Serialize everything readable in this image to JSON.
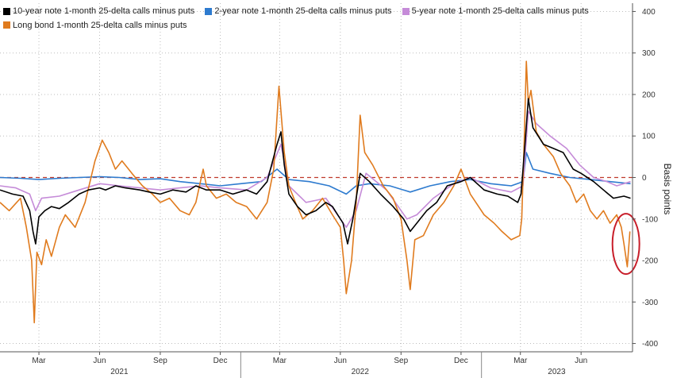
{
  "chart_data": {
    "type": "line",
    "title": "",
    "xlabel": "",
    "ylabel": "Basis points",
    "ylim": [
      -420,
      420
    ],
    "yticks": [
      400,
      300,
      200,
      100,
      0,
      -100,
      -200,
      -300,
      -400
    ],
    "x_range": [
      "2021-01-01",
      "2023-08-18"
    ],
    "month_ticks": [
      {
        "label": "Mar",
        "date": "2021-03-01"
      },
      {
        "label": "Jun",
        "date": "2021-06-01"
      },
      {
        "label": "Sep",
        "date": "2021-09-01"
      },
      {
        "label": "Dec",
        "date": "2021-12-01"
      },
      {
        "label": "Mar",
        "date": "2022-03-01"
      },
      {
        "label": "Jun",
        "date": "2022-06-01"
      },
      {
        "label": "Sep",
        "date": "2022-09-01"
      },
      {
        "label": "Dec",
        "date": "2022-12-01"
      },
      {
        "label": "Mar",
        "date": "2023-03-01"
      },
      {
        "label": "Jun",
        "date": "2023-06-01"
      }
    ],
    "year_labels": [
      {
        "label": "2021",
        "date": "2021-07-01"
      },
      {
        "label": "2022",
        "date": "2022-07-01"
      },
      {
        "label": "2023",
        "date": "2023-04-25"
      }
    ],
    "year_separators": [
      "2022-01-01",
      "2023-01-01"
    ],
    "zero_line": {
      "value": 0,
      "color": "#c0392b",
      "style": "dashed"
    },
    "grid": true,
    "legend_position": "top-left",
    "annotation": {
      "type": "circle",
      "date": "2023-08-08",
      "value": -160,
      "color": "#c81e2a"
    },
    "series": [
      {
        "name": "10-year note 1-month 25-delta calls minus puts",
        "color": "#000000",
        "points": [
          [
            "2021-01-01",
            -30
          ],
          [
            "2021-01-20",
            -40
          ],
          [
            "2021-02-05",
            -45
          ],
          [
            "2021-02-15",
            -80
          ],
          [
            "2021-02-20",
            -130
          ],
          [
            "2021-02-24",
            -160
          ],
          [
            "2021-03-01",
            -95
          ],
          [
            "2021-03-10",
            -80
          ],
          [
            "2021-03-20",
            -70
          ],
          [
            "2021-04-01",
            -75
          ],
          [
            "2021-04-15",
            -60
          ],
          [
            "2021-05-01",
            -40
          ],
          [
            "2021-05-15",
            -30
          ],
          [
            "2021-06-01",
            -25
          ],
          [
            "2021-06-10",
            -30
          ],
          [
            "2021-06-25",
            -20
          ],
          [
            "2021-07-10",
            -25
          ],
          [
            "2021-08-01",
            -30
          ],
          [
            "2021-08-15",
            -35
          ],
          [
            "2021-09-01",
            -40
          ],
          [
            "2021-09-20",
            -30
          ],
          [
            "2021-10-10",
            -35
          ],
          [
            "2021-10-25",
            -20
          ],
          [
            "2021-11-10",
            -30
          ],
          [
            "2021-12-01",
            -30
          ],
          [
            "2021-12-20",
            -40
          ],
          [
            "2022-01-10",
            -30
          ],
          [
            "2022-01-25",
            -40
          ],
          [
            "2022-02-10",
            -10
          ],
          [
            "2022-02-25",
            80
          ],
          [
            "2022-03-03",
            110
          ],
          [
            "2022-03-08",
            30
          ],
          [
            "2022-03-15",
            -40
          ],
          [
            "2022-03-28",
            -70
          ],
          [
            "2022-04-10",
            -90
          ],
          [
            "2022-04-25",
            -80
          ],
          [
            "2022-05-10",
            -60
          ],
          [
            "2022-05-20",
            -70
          ],
          [
            "2022-06-05",
            -110
          ],
          [
            "2022-06-12",
            -160
          ],
          [
            "2022-06-20",
            -100
          ],
          [
            "2022-07-01",
            10
          ],
          [
            "2022-07-15",
            -10
          ],
          [
            "2022-08-01",
            -40
          ],
          [
            "2022-08-20",
            -70
          ],
          [
            "2022-09-05",
            -100
          ],
          [
            "2022-09-15",
            -130
          ],
          [
            "2022-09-25",
            -110
          ],
          [
            "2022-10-10",
            -80
          ],
          [
            "2022-10-25",
            -60
          ],
          [
            "2022-11-10",
            -20
          ],
          [
            "2022-12-01",
            -10
          ],
          [
            "2022-12-15",
            0
          ],
          [
            "2023-01-05",
            -30
          ],
          [
            "2023-01-25",
            -40
          ],
          [
            "2023-02-10",
            -45
          ],
          [
            "2023-02-25",
            -60
          ],
          [
            "2023-03-02",
            -40
          ],
          [
            "2023-03-08",
            80
          ],
          [
            "2023-03-13",
            190
          ],
          [
            "2023-03-20",
            120
          ],
          [
            "2023-04-05",
            80
          ],
          [
            "2023-04-20",
            70
          ],
          [
            "2023-05-05",
            60
          ],
          [
            "2023-05-20",
            20
          ],
          [
            "2023-06-01",
            10
          ],
          [
            "2023-06-20",
            -10
          ],
          [
            "2023-07-05",
            -30
          ],
          [
            "2023-07-20",
            -50
          ],
          [
            "2023-08-05",
            -45
          ],
          [
            "2023-08-15",
            -50
          ]
        ]
      },
      {
        "name": "2-year note 1-month 25-delta calls minus puts",
        "color": "#2e7bcf",
        "points": [
          [
            "2021-01-01",
            0
          ],
          [
            "2021-02-01",
            -2
          ],
          [
            "2021-03-01",
            -5
          ],
          [
            "2021-04-01",
            -2
          ],
          [
            "2021-05-01",
            0
          ],
          [
            "2021-06-01",
            2
          ],
          [
            "2021-07-01",
            0
          ],
          [
            "2021-08-01",
            -5
          ],
          [
            "2021-09-01",
            -3
          ],
          [
            "2021-10-01",
            -10
          ],
          [
            "2021-11-01",
            -15
          ],
          [
            "2021-12-01",
            -20
          ],
          [
            "2022-01-01",
            -15
          ],
          [
            "2022-02-01",
            -10
          ],
          [
            "2022-02-25",
            20
          ],
          [
            "2022-03-15",
            -5
          ],
          [
            "2022-04-15",
            -10
          ],
          [
            "2022-05-15",
            -20
          ],
          [
            "2022-06-10",
            -40
          ],
          [
            "2022-06-25",
            -20
          ],
          [
            "2022-07-15",
            -15
          ],
          [
            "2022-08-15",
            -20
          ],
          [
            "2022-09-15",
            -35
          ],
          [
            "2022-10-15",
            -20
          ],
          [
            "2022-11-15",
            -10
          ],
          [
            "2022-12-15",
            -5
          ],
          [
            "2023-01-15",
            -15
          ],
          [
            "2023-02-15",
            -20
          ],
          [
            "2023-03-05",
            -10
          ],
          [
            "2023-03-10",
            60
          ],
          [
            "2023-03-20",
            20
          ],
          [
            "2023-04-15",
            10
          ],
          [
            "2023-05-15",
            0
          ],
          [
            "2023-06-15",
            -5
          ],
          [
            "2023-07-15",
            -10
          ],
          [
            "2023-08-15",
            -15
          ]
        ]
      },
      {
        "name": "5-year note 1-month 25-delta calls minus puts",
        "color": "#c58bd8",
        "points": [
          [
            "2021-01-01",
            -20
          ],
          [
            "2021-01-25",
            -25
          ],
          [
            "2021-02-15",
            -40
          ],
          [
            "2021-02-24",
            -80
          ],
          [
            "2021-03-05",
            -50
          ],
          [
            "2021-04-01",
            -45
          ],
          [
            "2021-05-01",
            -30
          ],
          [
            "2021-06-01",
            -15
          ],
          [
            "2021-07-01",
            -20
          ],
          [
            "2021-08-01",
            -25
          ],
          [
            "2021-09-01",
            -30
          ],
          [
            "2021-10-01",
            -25
          ],
          [
            "2021-11-01",
            -20
          ],
          [
            "2021-12-01",
            -25
          ],
          [
            "2022-01-10",
            -30
          ],
          [
            "2022-02-10",
            0
          ],
          [
            "2022-03-03",
            80
          ],
          [
            "2022-03-15",
            -20
          ],
          [
            "2022-04-10",
            -60
          ],
          [
            "2022-05-10",
            -50
          ],
          [
            "2022-06-10",
            -120
          ],
          [
            "2022-06-25",
            -80
          ],
          [
            "2022-07-10",
            10
          ],
          [
            "2022-08-10",
            -30
          ],
          [
            "2022-09-10",
            -100
          ],
          [
            "2022-09-25",
            -90
          ],
          [
            "2022-10-20",
            -50
          ],
          [
            "2022-11-20",
            -15
          ],
          [
            "2022-12-15",
            0
          ],
          [
            "2023-01-15",
            -25
          ],
          [
            "2023-02-15",
            -35
          ],
          [
            "2023-03-05",
            -20
          ],
          [
            "2023-03-13",
            160
          ],
          [
            "2023-03-25",
            130
          ],
          [
            "2023-04-15",
            100
          ],
          [
            "2023-05-10",
            70
          ],
          [
            "2023-05-30",
            30
          ],
          [
            "2023-06-20",
            0
          ],
          [
            "2023-07-10",
            -10
          ],
          [
            "2023-07-25",
            -20
          ],
          [
            "2023-08-15",
            -10
          ]
        ]
      },
      {
        "name": "Long bond 1-month 25-delta calls minus puts",
        "color": "#e07b1e",
        "points": [
          [
            "2021-01-01",
            -60
          ],
          [
            "2021-01-15",
            -80
          ],
          [
            "2021-02-01",
            -50
          ],
          [
            "2021-02-10",
            -120
          ],
          [
            "2021-02-18",
            -200
          ],
          [
            "2021-02-22",
            -350
          ],
          [
            "2021-02-26",
            -180
          ],
          [
            "2021-03-05",
            -210
          ],
          [
            "2021-03-12",
            -150
          ],
          [
            "2021-03-20",
            -190
          ],
          [
            "2021-04-01",
            -120
          ],
          [
            "2021-04-10",
            -90
          ],
          [
            "2021-04-25",
            -120
          ],
          [
            "2021-05-10",
            -60
          ],
          [
            "2021-05-25",
            40
          ],
          [
            "2021-06-05",
            90
          ],
          [
            "2021-06-15",
            60
          ],
          [
            "2021-06-25",
            20
          ],
          [
            "2021-07-05",
            40
          ],
          [
            "2021-07-20",
            10
          ],
          [
            "2021-08-05",
            -20
          ],
          [
            "2021-08-20",
            -40
          ],
          [
            "2021-09-01",
            -60
          ],
          [
            "2021-09-15",
            -50
          ],
          [
            "2021-10-01",
            -80
          ],
          [
            "2021-10-15",
            -90
          ],
          [
            "2021-10-25",
            -60
          ],
          [
            "2021-11-05",
            20
          ],
          [
            "2021-11-10",
            -20
          ],
          [
            "2021-11-25",
            -50
          ],
          [
            "2021-12-10",
            -40
          ],
          [
            "2021-12-25",
            -60
          ],
          [
            "2022-01-10",
            -70
          ],
          [
            "2022-01-25",
            -100
          ],
          [
            "2022-02-10",
            -60
          ],
          [
            "2022-02-20",
            20
          ],
          [
            "2022-02-28",
            220
          ],
          [
            "2022-03-03",
            160
          ],
          [
            "2022-03-08",
            60
          ],
          [
            "2022-03-15",
            -20
          ],
          [
            "2022-03-25",
            -60
          ],
          [
            "2022-04-05",
            -100
          ],
          [
            "2022-04-20",
            -80
          ],
          [
            "2022-05-05",
            -50
          ],
          [
            "2022-05-20",
            -90
          ],
          [
            "2022-06-01",
            -120
          ],
          [
            "2022-06-06",
            -200
          ],
          [
            "2022-06-10",
            -280
          ],
          [
            "2022-06-18",
            -200
          ],
          [
            "2022-06-25",
            -60
          ],
          [
            "2022-07-01",
            150
          ],
          [
            "2022-07-08",
            60
          ],
          [
            "2022-07-20",
            30
          ],
          [
            "2022-08-05",
            -20
          ],
          [
            "2022-08-20",
            -50
          ],
          [
            "2022-09-01",
            -100
          ],
          [
            "2022-09-10",
            -200
          ],
          [
            "2022-09-15",
            -270
          ],
          [
            "2022-09-22",
            -150
          ],
          [
            "2022-10-05",
            -140
          ],
          [
            "2022-10-20",
            -90
          ],
          [
            "2022-11-05",
            -60
          ],
          [
            "2022-11-20",
            -20
          ],
          [
            "2022-12-01",
            20
          ],
          [
            "2022-12-15",
            -40
          ],
          [
            "2023-01-05",
            -90
          ],
          [
            "2023-01-20",
            -110
          ],
          [
            "2023-02-01",
            -130
          ],
          [
            "2023-02-15",
            -150
          ],
          [
            "2023-02-28",
            -140
          ],
          [
            "2023-03-03",
            -100
          ],
          [
            "2023-03-07",
            100
          ],
          [
            "2023-03-10",
            280
          ],
          [
            "2023-03-13",
            180
          ],
          [
            "2023-03-17",
            210
          ],
          [
            "2023-03-25",
            110
          ],
          [
            "2023-04-05",
            80
          ],
          [
            "2023-04-20",
            50
          ],
          [
            "2023-05-01",
            10
          ],
          [
            "2023-05-15",
            -20
          ],
          [
            "2023-05-25",
            -60
          ],
          [
            "2023-06-05",
            -40
          ],
          [
            "2023-06-15",
            -80
          ],
          [
            "2023-06-25",
            -100
          ],
          [
            "2023-07-05",
            -80
          ],
          [
            "2023-07-15",
            -110
          ],
          [
            "2023-07-25",
            -90
          ],
          [
            "2023-08-01",
            -120
          ],
          [
            "2023-08-05",
            -160
          ],
          [
            "2023-08-10",
            -215
          ],
          [
            "2023-08-14",
            -130
          ]
        ]
      }
    ]
  }
}
